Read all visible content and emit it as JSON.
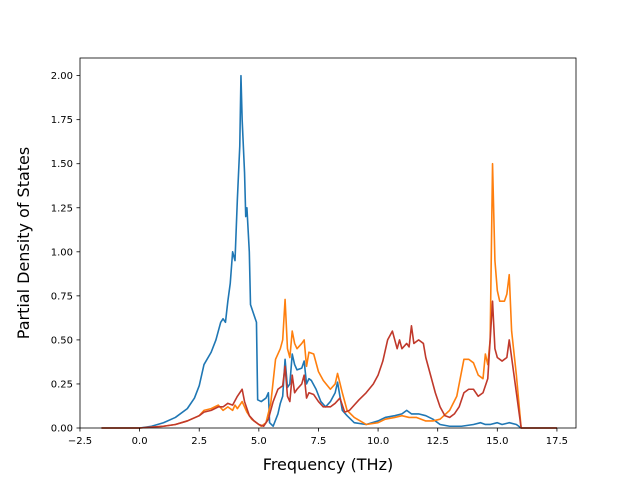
{
  "chart_data": {
    "type": "line",
    "title": "",
    "xlabel": "Frequency (THz)",
    "ylabel": "Partial Density of States",
    "xlim": [
      -2.5,
      18.3
    ],
    "ylim": [
      0.0,
      2.1
    ],
    "xticks": [
      "−2.5",
      "0.0",
      "2.5",
      "5.0",
      "7.5",
      "10.0",
      "12.5",
      "15.0",
      "17.5"
    ],
    "xtick_values": [
      -2.5,
      0.0,
      2.5,
      5.0,
      7.5,
      10.0,
      12.5,
      15.0,
      17.5
    ],
    "yticks": [
      "0.00",
      "0.25",
      "0.50",
      "0.75",
      "1.00",
      "1.25",
      "1.50",
      "1.75",
      "2.00"
    ],
    "ytick_values": [
      0.0,
      0.25,
      0.5,
      0.75,
      1.0,
      1.25,
      1.5,
      1.75,
      2.0
    ],
    "grid": false,
    "legend": "none",
    "series": [
      {
        "color": "#1f77b4",
        "points": [
          [
            -1.6,
            0
          ],
          [
            0,
            0
          ],
          [
            0.5,
            0.01
          ],
          [
            1,
            0.03
          ],
          [
            1.5,
            0.06
          ],
          [
            2,
            0.11
          ],
          [
            2.3,
            0.17
          ],
          [
            2.5,
            0.24
          ],
          [
            2.7,
            0.36
          ],
          [
            3,
            0.43
          ],
          [
            3.2,
            0.5
          ],
          [
            3.4,
            0.6
          ],
          [
            3.5,
            0.62
          ],
          [
            3.6,
            0.6
          ],
          [
            3.7,
            0.72
          ],
          [
            3.8,
            0.82
          ],
          [
            3.9,
            1.0
          ],
          [
            4.0,
            0.95
          ],
          [
            4.1,
            1.3
          ],
          [
            4.2,
            1.6
          ],
          [
            4.25,
            2.0
          ],
          [
            4.3,
            1.75
          ],
          [
            4.4,
            1.45
          ],
          [
            4.45,
            1.2
          ],
          [
            4.5,
            1.25
          ],
          [
            4.6,
            1.0
          ],
          [
            4.65,
            0.7
          ],
          [
            4.8,
            0.64
          ],
          [
            4.9,
            0.6
          ],
          [
            4.95,
            0.16
          ],
          [
            5.1,
            0.15
          ],
          [
            5.3,
            0.17
          ],
          [
            5.4,
            0.2
          ],
          [
            5.45,
            0.03
          ],
          [
            5.6,
            0.01
          ],
          [
            5.8,
            0.08
          ],
          [
            5.9,
            0.14
          ],
          [
            6.0,
            0.18
          ],
          [
            6.1,
            0.39
          ],
          [
            6.2,
            0.23
          ],
          [
            6.3,
            0.25
          ],
          [
            6.4,
            0.42
          ],
          [
            6.5,
            0.36
          ],
          [
            6.6,
            0.33
          ],
          [
            6.8,
            0.34
          ],
          [
            6.9,
            0.38
          ],
          [
            7.0,
            0.25
          ],
          [
            7.1,
            0.28
          ],
          [
            7.2,
            0.27
          ],
          [
            7.4,
            0.22
          ],
          [
            7.6,
            0.15
          ],
          [
            7.8,
            0.12
          ],
          [
            8.0,
            0.15
          ],
          [
            8.2,
            0.2
          ],
          [
            8.3,
            0.26
          ],
          [
            8.5,
            0.1
          ],
          [
            8.7,
            0.07
          ],
          [
            9,
            0.03
          ],
          [
            9.5,
            0.02
          ],
          [
            10,
            0.04
          ],
          [
            10.3,
            0.06
          ],
          [
            10.7,
            0.07
          ],
          [
            11,
            0.08
          ],
          [
            11.2,
            0.1
          ],
          [
            11.4,
            0.08
          ],
          [
            11.7,
            0.08
          ],
          [
            12,
            0.07
          ],
          [
            12.3,
            0.05
          ],
          [
            12.6,
            0.02
          ],
          [
            13,
            0.01
          ],
          [
            13.5,
            0.01
          ],
          [
            14,
            0.02
          ],
          [
            14.3,
            0.03
          ],
          [
            14.5,
            0.02
          ],
          [
            14.7,
            0.02
          ],
          [
            15.0,
            0.03
          ],
          [
            15.2,
            0.02
          ],
          [
            15.5,
            0.03
          ],
          [
            15.8,
            0.02
          ],
          [
            16,
            0
          ],
          [
            17.5,
            0
          ]
        ]
      },
      {
        "color": "#ff7f0e",
        "points": [
          [
            -1.6,
            0
          ],
          [
            0,
            0
          ],
          [
            0.5,
            0.005
          ],
          [
            1,
            0.01
          ],
          [
            1.5,
            0.02
          ],
          [
            2,
            0.04
          ],
          [
            2.5,
            0.07
          ],
          [
            2.7,
            0.1
          ],
          [
            3,
            0.11
          ],
          [
            3.3,
            0.13
          ],
          [
            3.5,
            0.1
          ],
          [
            3.7,
            0.12
          ],
          [
            3.9,
            0.1
          ],
          [
            4,
            0.13
          ],
          [
            4.1,
            0.11
          ],
          [
            4.3,
            0.15
          ],
          [
            4.5,
            0.09
          ],
          [
            4.7,
            0.05
          ],
          [
            4.9,
            0.03
          ],
          [
            5.1,
            0.01
          ],
          [
            5.3,
            0.03
          ],
          [
            5.5,
            0.14
          ],
          [
            5.7,
            0.39
          ],
          [
            5.9,
            0.45
          ],
          [
            6.0,
            0.5
          ],
          [
            6.1,
            0.73
          ],
          [
            6.2,
            0.45
          ],
          [
            6.3,
            0.4
          ],
          [
            6.4,
            0.55
          ],
          [
            6.5,
            0.48
          ],
          [
            6.6,
            0.45
          ],
          [
            6.8,
            0.48
          ],
          [
            6.9,
            0.5
          ],
          [
            7.0,
            0.35
          ],
          [
            7.1,
            0.43
          ],
          [
            7.3,
            0.42
          ],
          [
            7.5,
            0.32
          ],
          [
            7.7,
            0.27
          ],
          [
            8.0,
            0.22
          ],
          [
            8.2,
            0.25
          ],
          [
            8.3,
            0.31
          ],
          [
            8.5,
            0.2
          ],
          [
            8.7,
            0.1
          ],
          [
            9,
            0.06
          ],
          [
            9.5,
            0.02
          ],
          [
            10,
            0.03
          ],
          [
            10.3,
            0.05
          ],
          [
            10.7,
            0.06
          ],
          [
            11,
            0.07
          ],
          [
            11.3,
            0.06
          ],
          [
            11.6,
            0.06
          ],
          [
            12,
            0.04
          ],
          [
            12.3,
            0.04
          ],
          [
            12.6,
            0.05
          ],
          [
            13,
            0.1
          ],
          [
            13.3,
            0.18
          ],
          [
            13.6,
            0.39
          ],
          [
            13.8,
            0.39
          ],
          [
            14,
            0.37
          ],
          [
            14.2,
            0.3
          ],
          [
            14.4,
            0.28
          ],
          [
            14.5,
            0.42
          ],
          [
            14.6,
            0.36
          ],
          [
            14.7,
            0.5
          ],
          [
            14.8,
            1.5
          ],
          [
            14.9,
            0.95
          ],
          [
            15,
            0.78
          ],
          [
            15.1,
            0.72
          ],
          [
            15.3,
            0.72
          ],
          [
            15.4,
            0.76
          ],
          [
            15.5,
            0.87
          ],
          [
            15.6,
            0.55
          ],
          [
            15.8,
            0.3
          ],
          [
            16,
            0
          ],
          [
            17.5,
            0
          ]
        ]
      },
      {
        "color": "#c0392b",
        "points": [
          [
            -1.6,
            0
          ],
          [
            0,
            0
          ],
          [
            0.5,
            0.005
          ],
          [
            1,
            0.01
          ],
          [
            1.5,
            0.02
          ],
          [
            2,
            0.04
          ],
          [
            2.5,
            0.07
          ],
          [
            2.7,
            0.09
          ],
          [
            3,
            0.1
          ],
          [
            3.3,
            0.12
          ],
          [
            3.5,
            0.12
          ],
          [
            3.7,
            0.14
          ],
          [
            3.9,
            0.13
          ],
          [
            4.1,
            0.18
          ],
          [
            4.3,
            0.22
          ],
          [
            4.4,
            0.15
          ],
          [
            4.6,
            0.07
          ],
          [
            4.8,
            0.04
          ],
          [
            5,
            0.02
          ],
          [
            5.2,
            0.01
          ],
          [
            5.4,
            0.05
          ],
          [
            5.6,
            0.15
          ],
          [
            5.8,
            0.22
          ],
          [
            6.0,
            0.24
          ],
          [
            6.1,
            0.35
          ],
          [
            6.2,
            0.18
          ],
          [
            6.3,
            0.15
          ],
          [
            6.4,
            0.3
          ],
          [
            6.5,
            0.2
          ],
          [
            6.6,
            0.22
          ],
          [
            6.8,
            0.25
          ],
          [
            6.9,
            0.3
          ],
          [
            7.0,
            0.17
          ],
          [
            7.1,
            0.2
          ],
          [
            7.3,
            0.19
          ],
          [
            7.5,
            0.15
          ],
          [
            7.7,
            0.12
          ],
          [
            8,
            0.12
          ],
          [
            8.2,
            0.14
          ],
          [
            8.4,
            0.17
          ],
          [
            8.6,
            0.09
          ],
          [
            8.8,
            0.1
          ],
          [
            9.2,
            0.16
          ],
          [
            9.5,
            0.2
          ],
          [
            9.8,
            0.25
          ],
          [
            10.0,
            0.3
          ],
          [
            10.2,
            0.38
          ],
          [
            10.4,
            0.5
          ],
          [
            10.6,
            0.55
          ],
          [
            10.8,
            0.45
          ],
          [
            10.9,
            0.5
          ],
          [
            11.0,
            0.45
          ],
          [
            11.2,
            0.48
          ],
          [
            11.3,
            0.46
          ],
          [
            11.4,
            0.58
          ],
          [
            11.5,
            0.48
          ],
          [
            11.7,
            0.5
          ],
          [
            11.9,
            0.48
          ],
          [
            12,
            0.4
          ],
          [
            12.2,
            0.3
          ],
          [
            12.4,
            0.2
          ],
          [
            12.6,
            0.12
          ],
          [
            12.8,
            0.07
          ],
          [
            13,
            0.06
          ],
          [
            13.2,
            0.08
          ],
          [
            13.4,
            0.12
          ],
          [
            13.6,
            0.2
          ],
          [
            13.8,
            0.22
          ],
          [
            14,
            0.22
          ],
          [
            14.2,
            0.18
          ],
          [
            14.4,
            0.2
          ],
          [
            14.5,
            0.24
          ],
          [
            14.6,
            0.28
          ],
          [
            14.7,
            0.5
          ],
          [
            14.8,
            0.72
          ],
          [
            14.9,
            0.45
          ],
          [
            15,
            0.4
          ],
          [
            15.2,
            0.38
          ],
          [
            15.4,
            0.4
          ],
          [
            15.5,
            0.5
          ],
          [
            15.6,
            0.4
          ],
          [
            15.8,
            0.2
          ],
          [
            16,
            0
          ],
          [
            17.5,
            0
          ]
        ]
      }
    ]
  }
}
